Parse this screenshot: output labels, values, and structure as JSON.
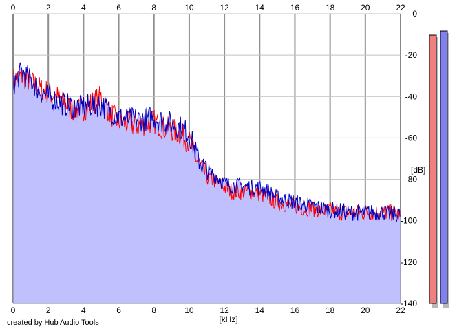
{
  "credit_text": "created by Hub Audio Tools",
  "colors": {
    "background": "#ffffff",
    "plot_fill": "#c0c0ff",
    "grid": "#c0c0c0",
    "channel_left": "#ff0000",
    "channel_right": "#0000c0",
    "meter_left": "#f08080",
    "meter_right": "#8080f0"
  },
  "chart_data": {
    "type": "line",
    "title": "",
    "xlabel": "[kHz]",
    "ylabel": "[dB]",
    "xlim": [
      0,
      22
    ],
    "ylim": [
      -140,
      0
    ],
    "x_ticks": [
      "0",
      "2",
      "4",
      "6",
      "8",
      "10",
      "12",
      "14",
      "16",
      "18",
      "20",
      "22"
    ],
    "y_ticks": [
      "0",
      "-20",
      "-40",
      "-60",
      "-80",
      "-100",
      "-120",
      "-140"
    ],
    "grid": true,
    "series": [
      {
        "color": "#ff0000",
        "x": [
          0,
          0.5,
          1,
          1.5,
          2,
          2.5,
          3,
          3.5,
          4,
          4.5,
          5,
          5.5,
          6,
          6.5,
          7,
          7.5,
          8,
          8.5,
          9,
          9.5,
          10,
          10.5,
          11,
          11.5,
          12,
          12.5,
          13,
          13.5,
          14,
          14.5,
          15,
          15.5,
          16,
          16.5,
          17,
          17.5,
          18,
          18.5,
          19,
          19.5,
          20,
          20.5,
          21,
          21.5,
          22
        ],
        "values": [
          -32,
          -30,
          -33,
          -36,
          -38,
          -40,
          -44,
          -47,
          -46,
          -43,
          -40,
          -48,
          -52,
          -53,
          -54,
          -53,
          -52,
          -55,
          -56,
          -58,
          -62,
          -72,
          -79,
          -81,
          -84,
          -86,
          -86,
          -86,
          -87,
          -89,
          -91,
          -92,
          -93,
          -94,
          -94,
          -95,
          -95,
          -96,
          -96,
          -96,
          -96,
          -96,
          -96,
          -96,
          -97
        ]
      },
      {
        "color": "#0000c0",
        "x": [
          0,
          0.5,
          1,
          1.5,
          2,
          2.5,
          3,
          3.5,
          4,
          4.5,
          5,
          5.5,
          6,
          6.5,
          7,
          7.5,
          8,
          8.5,
          9,
          9.5,
          10,
          10.5,
          11,
          11.5,
          12,
          12.5,
          13,
          13.5,
          14,
          14.5,
          15,
          15.5,
          16,
          16.5,
          17,
          17.5,
          18,
          18.5,
          19,
          19.5,
          20,
          20.5,
          21,
          21.5,
          22
        ],
        "values": [
          -34,
          -28,
          -32,
          -37,
          -40,
          -42,
          -44,
          -45,
          -45,
          -44,
          -44,
          -47,
          -50,
          -51,
          -51,
          -51,
          -50,
          -52,
          -53,
          -55,
          -58,
          -70,
          -76,
          -78,
          -82,
          -83,
          -83,
          -84,
          -84,
          -86,
          -89,
          -90,
          -91,
          -92,
          -93,
          -94,
          -95,
          -95,
          -96,
          -96,
          -96,
          -96,
          -96,
          -97,
          -97
        ]
      }
    ],
    "meters": [
      {
        "color": "#f08080",
        "top_db": -5
      },
      {
        "color": "#8080f0",
        "top_db": -3
      }
    ]
  }
}
